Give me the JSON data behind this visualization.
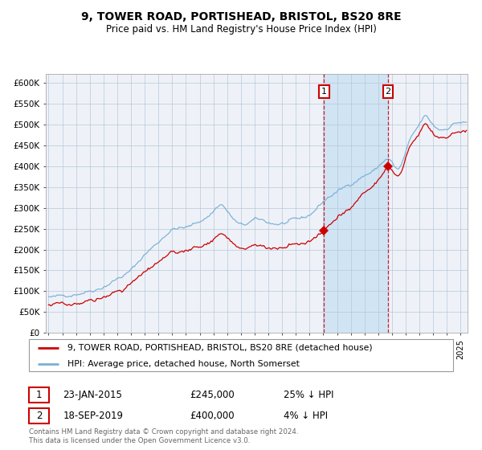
{
  "title": "9, TOWER ROAD, PORTISHEAD, BRISTOL, BS20 8RE",
  "subtitle": "Price paid vs. HM Land Registry's House Price Index (HPI)",
  "legend_line1": "9, TOWER ROAD, PORTISHEAD, BRISTOL, BS20 8RE (detached house)",
  "legend_line2": "HPI: Average price, detached house, North Somerset",
  "sale1_x": 2015.06,
  "sale1_y": 245000,
  "sale2_x": 2019.72,
  "sale2_y": 400000,
  "hpi_color": "#7ab0d4",
  "price_color": "#cc0000",
  "background_color": "#ffffff",
  "plot_bg_color": "#eef2f8",
  "grid_color": "#b8c8d8",
  "shade_color": "#d0e4f4",
  "ylim": [
    0,
    620000
  ],
  "xlim_start": 1994.8,
  "xlim_end": 2025.5,
  "yticks": [
    0,
    50000,
    100000,
    150000,
    200000,
    250000,
    300000,
    350000,
    400000,
    450000,
    500000,
    550000,
    600000
  ],
  "ylabels": [
    "£0",
    "£50K",
    "£100K",
    "£150K",
    "£200K",
    "£250K",
    "£300K",
    "£350K",
    "£400K",
    "£450K",
    "£500K",
    "£550K",
    "£600K"
  ],
  "footnote": "Contains HM Land Registry data © Crown copyright and database right 2024.\nThis data is licensed under the Open Government Licence v3.0.",
  "annotation1_date": "23-JAN-2015",
  "annotation1_price": "£245,000",
  "annotation1_note": "25% ↓ HPI",
  "annotation2_date": "18-SEP-2019",
  "annotation2_price": "£400,000",
  "annotation2_note": "4% ↓ HPI"
}
